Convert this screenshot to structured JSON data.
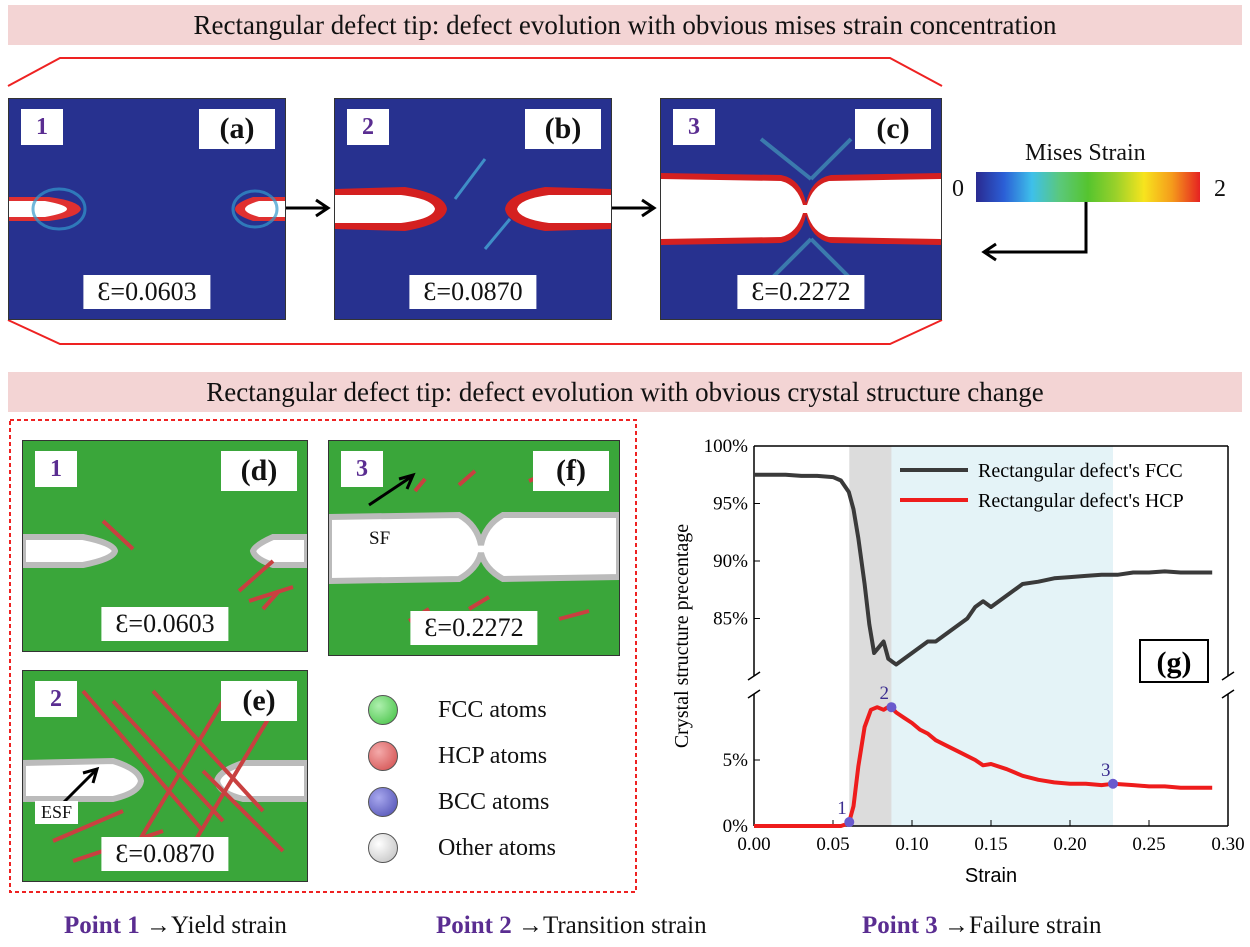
{
  "top_banner": "Rectangular defect tip: defect evolution with obvious mises strain concentration",
  "mid_banner": "Rectangular defect tip: defect evolution with obvious crystal structure change",
  "strain_panels": [
    {
      "num": "1",
      "tag": "(a)",
      "eps": "Ɛ=0.0603"
    },
    {
      "num": "2",
      "tag": "(b)",
      "eps": "Ɛ=0.0870"
    },
    {
      "num": "3",
      "tag": "(c)",
      "eps": "Ɛ=0.2272"
    }
  ],
  "colorbar": {
    "title": "Mises Strain",
    "min": "0",
    "max": "2"
  },
  "structure_panels": [
    {
      "num": "1",
      "tag": "(d)",
      "eps": "Ɛ=0.0603"
    },
    {
      "num": "3",
      "tag": "(f)",
      "eps": "Ɛ=0.2272",
      "annotation": "SF"
    },
    {
      "num": "2",
      "tag": "(e)",
      "eps": "Ɛ=0.0870",
      "annotation": "ESF"
    }
  ],
  "legend": [
    {
      "label": "FCC atoms",
      "color": "#3fbf3f"
    },
    {
      "label": "HCP atoms",
      "color": "#d04848"
    },
    {
      "label": "BCC atoms",
      "color": "#4a4ab0"
    },
    {
      "label": "Other atoms",
      "color": "#d8d8d8"
    }
  ],
  "footer": [
    {
      "point": "Point 1",
      "text": "Yield strain"
    },
    {
      "point": "Point 2",
      "text": "Transition strain"
    },
    {
      "point": "Point 3",
      "text": "Failure strain"
    }
  ],
  "chart_data": {
    "type": "line",
    "panel_tag": "(g)",
    "xlabel": "Strain",
    "ylabel": "Crystal structure precentage",
    "x_ticks": [
      "0.00",
      "0.05",
      "0.10",
      "0.15",
      "0.20",
      "0.25",
      "0.30"
    ],
    "y_ticks_upper": [
      "85%",
      "90%",
      "95%",
      "100%"
    ],
    "y_ticks_lower": [
      "0%",
      "5%"
    ],
    "xlim": [
      0,
      0.3
    ],
    "ylim_upper": [
      80,
      100
    ],
    "ylim_lower": [
      0,
      10
    ],
    "shaded_regions": [
      {
        "from": 0.0603,
        "to": 0.087,
        "color": "#dcdcdc"
      },
      {
        "from": 0.087,
        "to": 0.2272,
        "color": "#e4f3f7"
      }
    ],
    "series": [
      {
        "name": "Rectangular defect's FCC",
        "color": "#3a3a3a",
        "axis": "upper",
        "x": [
          0,
          0.01,
          0.02,
          0.03,
          0.04,
          0.05,
          0.055,
          0.06,
          0.063,
          0.066,
          0.07,
          0.073,
          0.076,
          0.079,
          0.082,
          0.085,
          0.088,
          0.09,
          0.095,
          0.1,
          0.105,
          0.11,
          0.115,
          0.12,
          0.125,
          0.13,
          0.135,
          0.14,
          0.145,
          0.15,
          0.155,
          0.16,
          0.165,
          0.17,
          0.18,
          0.19,
          0.2,
          0.21,
          0.22,
          0.23,
          0.24,
          0.25,
          0.26,
          0.27,
          0.28,
          0.29
        ],
        "y": [
          97.5,
          97.5,
          97.5,
          97.4,
          97.4,
          97.3,
          97.0,
          96.0,
          94.5,
          92.0,
          88.0,
          84.5,
          82.0,
          82.5,
          83.0,
          81.5,
          81.2,
          81.0,
          81.5,
          82.0,
          82.5,
          83.0,
          83.0,
          83.5,
          84.0,
          84.5,
          85.0,
          86.0,
          86.5,
          86.0,
          86.5,
          87.0,
          87.5,
          88.0,
          88.2,
          88.5,
          88.6,
          88.7,
          88.8,
          88.8,
          89.0,
          89.0,
          89.1,
          89.0,
          89.0,
          89.0
        ]
      },
      {
        "name": "Rectangular defect's HCP",
        "color": "#ee1c1c",
        "axis": "lower",
        "x": [
          0,
          0.01,
          0.02,
          0.03,
          0.04,
          0.05,
          0.055,
          0.06,
          0.063,
          0.066,
          0.07,
          0.074,
          0.078,
          0.082,
          0.086,
          0.09,
          0.095,
          0.1,
          0.105,
          0.11,
          0.115,
          0.12,
          0.13,
          0.14,
          0.145,
          0.15,
          0.16,
          0.17,
          0.18,
          0.19,
          0.2,
          0.21,
          0.22,
          0.2272,
          0.24,
          0.25,
          0.26,
          0.27,
          0.28,
          0.29
        ],
        "y": [
          0,
          0,
          0,
          0,
          0,
          0,
          0,
          0.2,
          1.5,
          4.5,
          7.5,
          8.8,
          9.0,
          8.8,
          9.1,
          8.6,
          8.2,
          7.8,
          7.3,
          7.0,
          6.5,
          6.2,
          5.6,
          5.0,
          4.6,
          4.7,
          4.3,
          3.8,
          3.5,
          3.3,
          3.2,
          3.2,
          3.1,
          3.2,
          3.1,
          3.0,
          3.0,
          2.9,
          2.9,
          2.9
        ]
      }
    ],
    "points": [
      {
        "label": "1",
        "x": 0.0603,
        "y": 0.3
      },
      {
        "label": "2",
        "x": 0.087,
        "y": 9.0
      },
      {
        "label": "3",
        "x": 0.2272,
        "y": 3.2
      }
    ]
  }
}
